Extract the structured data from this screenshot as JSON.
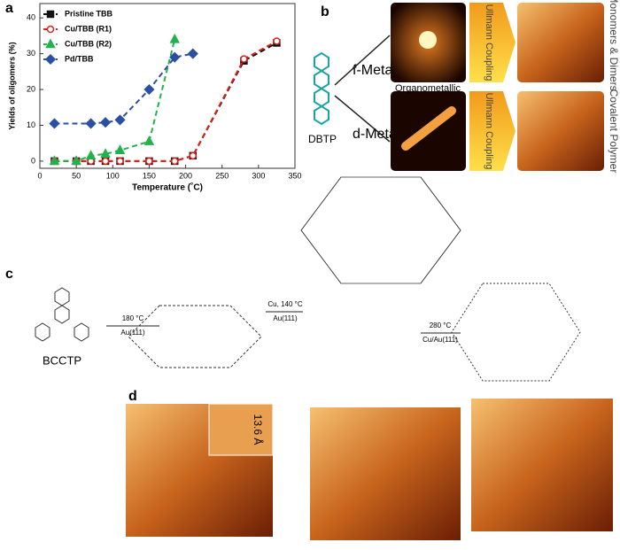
{
  "chart_data": {
    "type": "line",
    "panel_label": "a",
    "xlabel": "Temperature (˚C)",
    "ylabel": "Yields of oligomers (%)",
    "xlim": [
      0,
      350
    ],
    "xticks": [
      0,
      50,
      100,
      150,
      200,
      250,
      300,
      350
    ],
    "ylim": [
      -2,
      44
    ],
    "yticks": [
      0,
      10,
      20,
      30,
      40
    ],
    "legend": "upper left",
    "series": [
      {
        "name": "Pristine TBB",
        "color": "#111111",
        "marker": "square",
        "x": [
          20,
          50,
          70,
          90,
          110,
          150,
          185,
          210,
          280,
          325
        ],
        "values": [
          0,
          0,
          0,
          0,
          0,
          0,
          0,
          1.5,
          28,
          33
        ]
      },
      {
        "name": "Cu/TBB (R1)",
        "color": "#e0201b",
        "marker": "circle",
        "x": [
          20,
          50,
          70,
          90,
          110,
          150,
          185,
          210,
          280,
          325
        ],
        "values": [
          0,
          0,
          0,
          0,
          0,
          0,
          0,
          1.5,
          28.5,
          33.5
        ]
      },
      {
        "name": "Cu/TBB (R2)",
        "color": "#22b14c",
        "marker": "triangle",
        "x": [
          20,
          50,
          70,
          90,
          110,
          150,
          185
        ],
        "values": [
          0,
          0,
          1.5,
          2,
          3,
          5.5,
          34
        ]
      },
      {
        "name": "Pd/TBB",
        "color": "#2a4fa3",
        "marker": "diamond",
        "x": [
          20,
          70,
          90,
          110,
          150,
          185,
          210
        ],
        "values": [
          10.5,
          10.5,
          10.8,
          11.5,
          20,
          29,
          30
        ]
      }
    ]
  },
  "panel_b": {
    "label": "b",
    "f_metal": "f-Metal",
    "d_metal": "d-Metal",
    "molecule": "DBTP",
    "organometallic": "Organometallic",
    "coupling_top": "Ullmann Coupling",
    "coupling_bottom": "Ullmann Coupling",
    "product_top": "Monomers & Dimers",
    "product_bottom": "Covalent Polymer"
  },
  "panel_c": {
    "label": "c",
    "molecule": "BCCTP",
    "step1_temp": "180 °C",
    "step1_surface": "Au(111)",
    "step2_temp": "Cu, 140 °C",
    "step2_surface": "Au(111)",
    "step3_temp": "280 °C",
    "step3_surface": "Cu/Au(111)"
  },
  "panel_d": {
    "label": "d",
    "scale": "13.6 Å"
  }
}
